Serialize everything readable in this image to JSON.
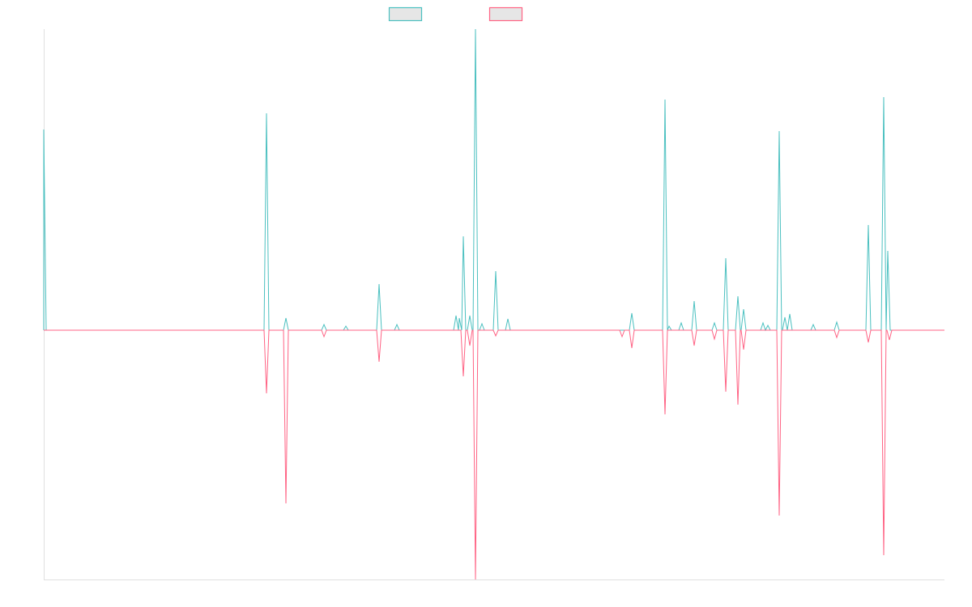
{
  "chart_data": {
    "type": "line",
    "title": "",
    "xlabel": "",
    "ylabel": "",
    "xlim": [
      0,
      1112
    ],
    "ylim": [
      -308,
      372
    ],
    "grid": false,
    "legend_placement": "top-center",
    "series": [
      {
        "name": "",
        "color": "#4bc0c0",
        "points": [
          [
            0,
            248
          ],
          [
            275,
            268
          ],
          [
            299,
            15
          ],
          [
            346,
            7
          ],
          [
            373,
            5
          ],
          [
            414,
            57
          ],
          [
            436,
            7
          ],
          [
            509,
            18
          ],
          [
            513,
            15
          ],
          [
            518,
            116
          ],
          [
            526,
            18
          ],
          [
            533,
            372
          ],
          [
            541,
            8
          ],
          [
            558,
            73
          ],
          [
            573,
            14
          ],
          [
            726,
            21
          ],
          [
            767,
            285
          ],
          [
            772,
            5
          ],
          [
            787,
            9
          ],
          [
            803,
            36
          ],
          [
            828,
            9
          ],
          [
            842,
            89
          ],
          [
            857,
            42
          ],
          [
            864,
            26
          ],
          [
            888,
            9
          ],
          [
            894,
            6
          ],
          [
            908,
            246
          ],
          [
            915,
            16
          ],
          [
            921,
            20
          ],
          [
            950,
            7
          ],
          [
            979,
            10
          ],
          [
            1018,
            130
          ],
          [
            1037,
            288
          ],
          [
            1042,
            98
          ]
        ]
      },
      {
        "name": "",
        "color": "#ff6384",
        "points": [
          [
            275,
            -78
          ],
          [
            299,
            -214
          ],
          [
            346,
            -8
          ],
          [
            414,
            -39
          ],
          [
            518,
            -57
          ],
          [
            526,
            -19
          ],
          [
            533,
            -308
          ],
          [
            558,
            -7
          ],
          [
            714,
            -8
          ],
          [
            726,
            -22
          ],
          [
            767,
            -104
          ],
          [
            803,
            -19
          ],
          [
            828,
            -11
          ],
          [
            842,
            -76
          ],
          [
            857,
            -92
          ],
          [
            864,
            -24
          ],
          [
            908,
            -229
          ],
          [
            979,
            -9
          ],
          [
            1018,
            -15
          ],
          [
            1037,
            -278
          ],
          [
            1044,
            -12
          ]
        ]
      }
    ]
  }
}
